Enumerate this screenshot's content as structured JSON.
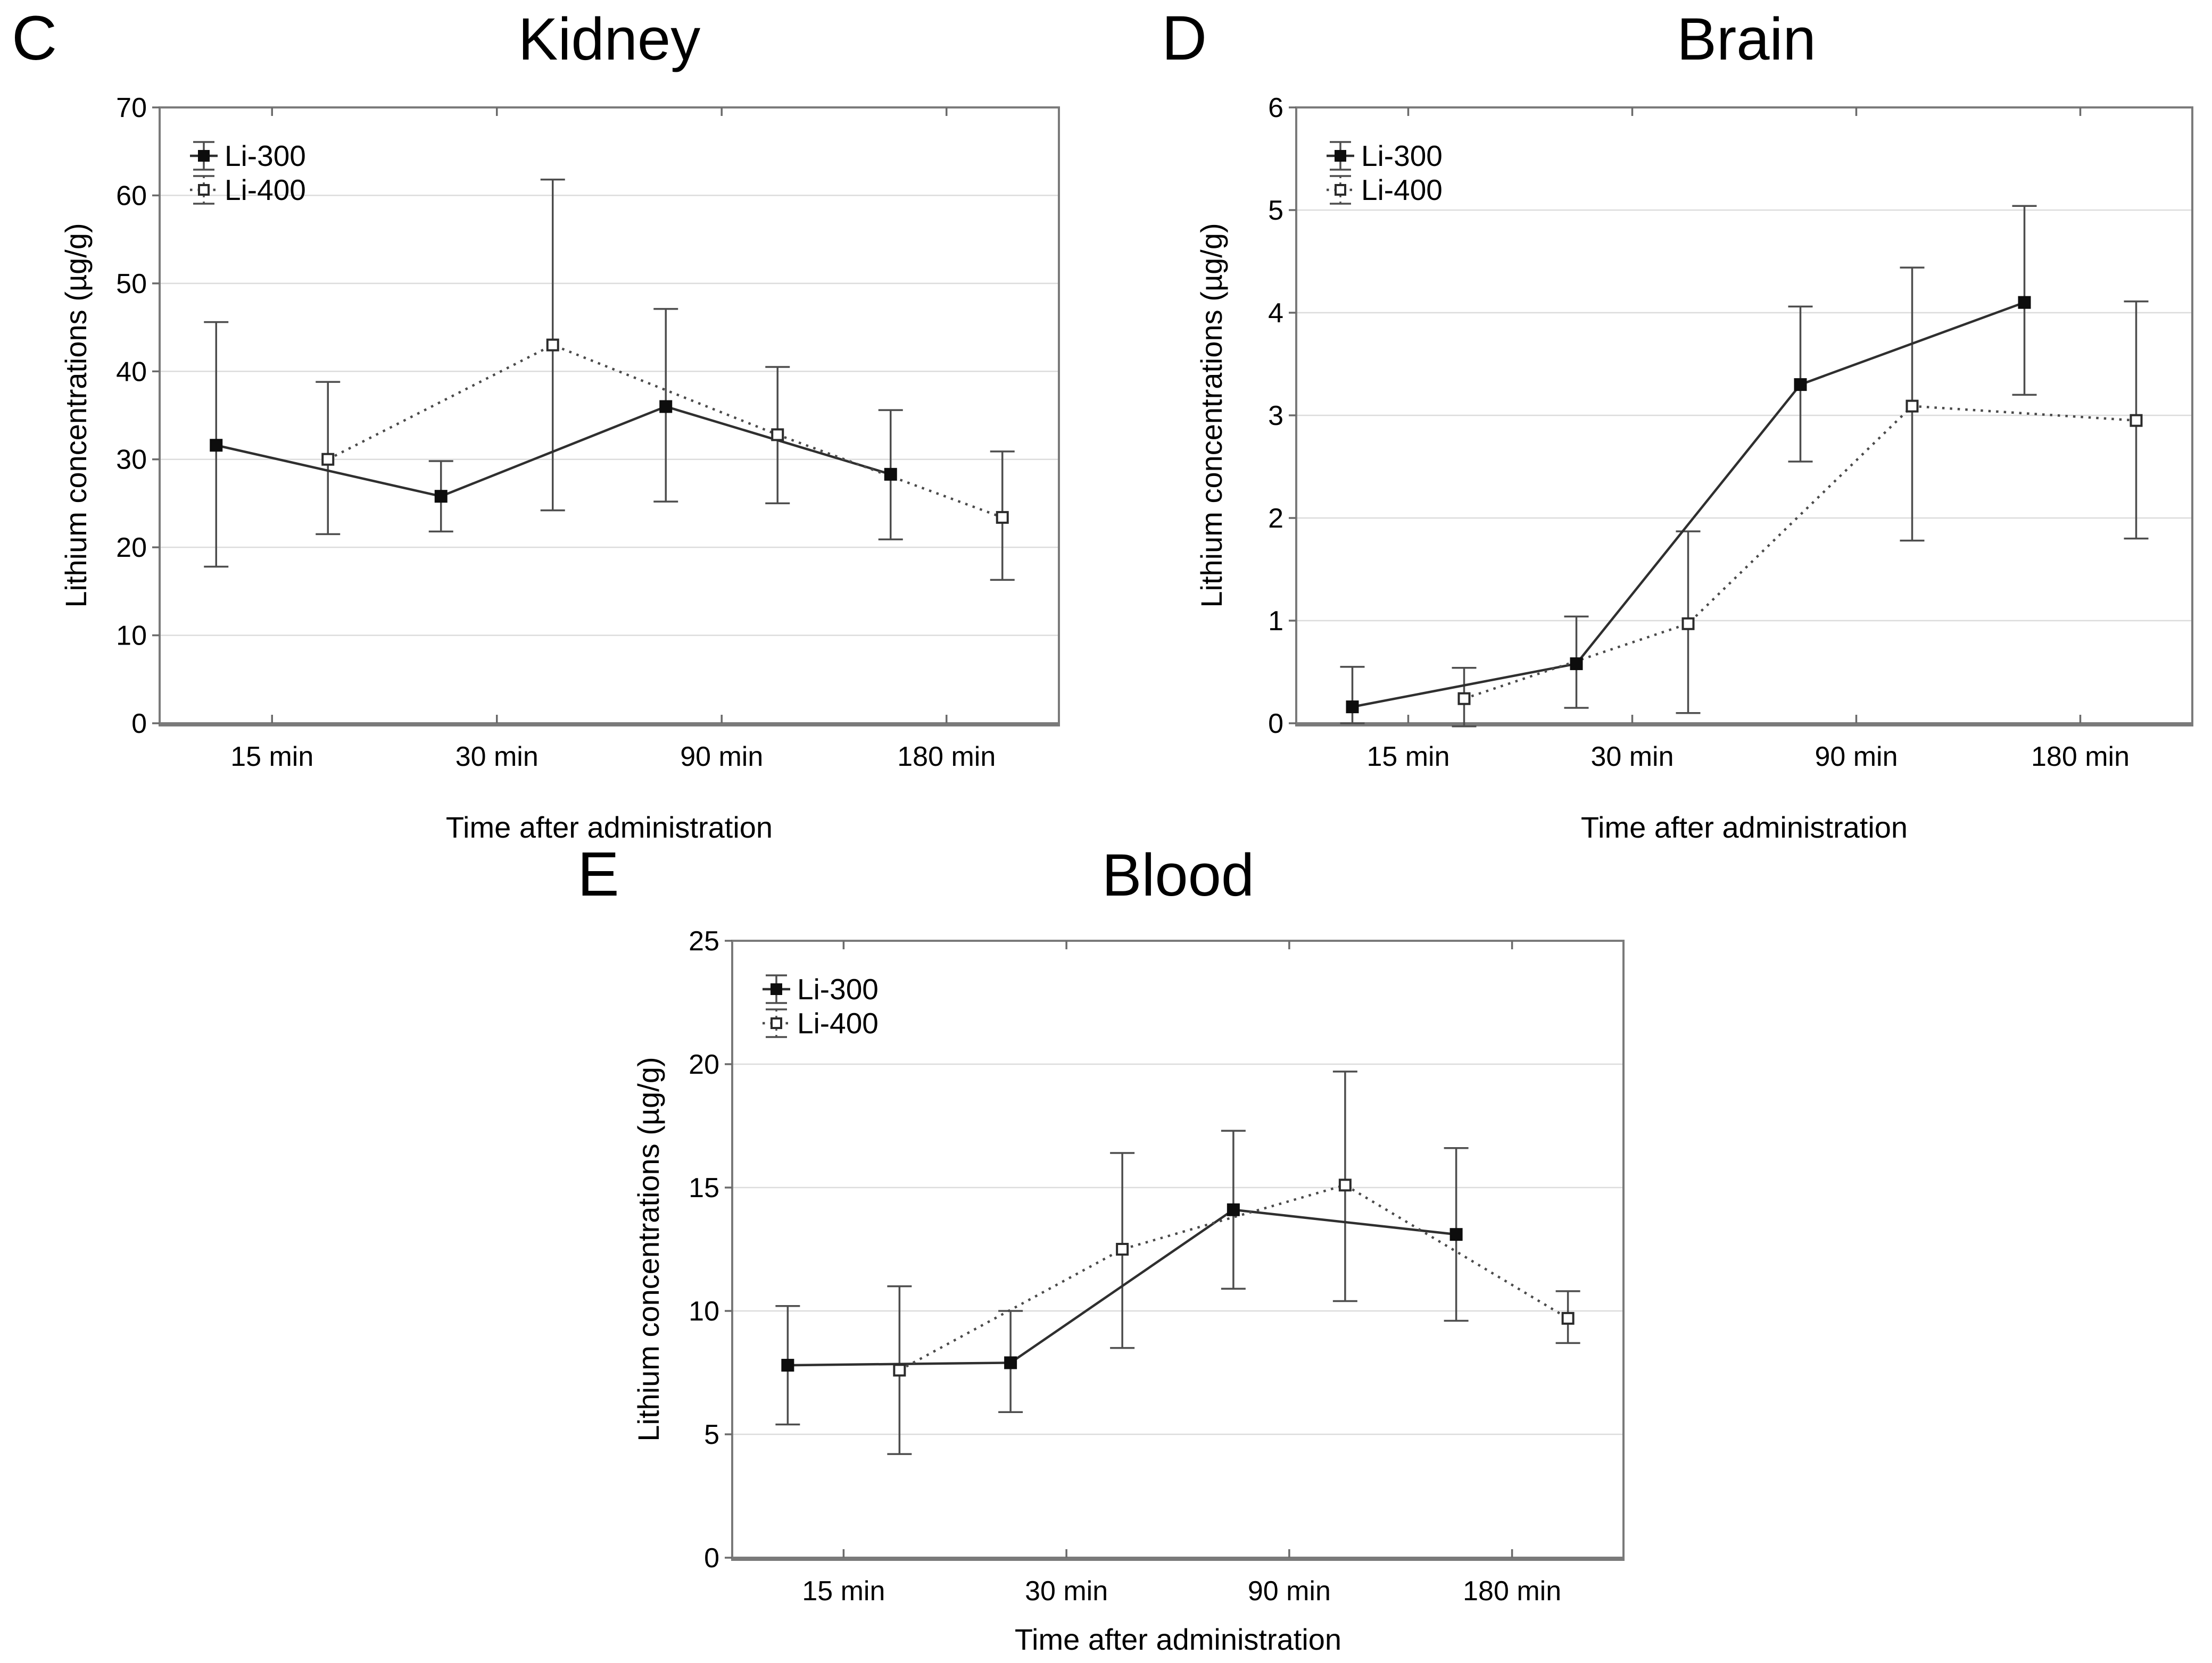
{
  "figure": {
    "background": "#ffffff",
    "description_texts": {
      "xlabel": "Time after administration",
      "ylabel": "Lithium concentrations (µg/g)"
    }
  },
  "colors": {
    "frame": "#7a7a7a",
    "gridline": "#dcdcdc",
    "error_bar": "#4d4d4d",
    "series_li300": "#2f2f2f",
    "series_li400": "#4a4a4a",
    "text": "#000000"
  },
  "chart_data": [
    {
      "panel_letter": "C",
      "title": "Kidney",
      "type": "line",
      "xlabel": "Time after administration",
      "ylabel": "Lithium concentrations (µg/g)",
      "categories": [
        "15 min",
        "30 min",
        "90 min",
        "180 min"
      ],
      "ylim": [
        0,
        70
      ],
      "yticks": [
        0,
        10,
        20,
        30,
        40,
        50,
        60,
        70
      ],
      "grid": "horizontal",
      "legend_position": "top-left",
      "series": [
        {
          "name": "Li-300",
          "marker": "filled-square",
          "line": "solid",
          "values": [
            31.6,
            25.8,
            36.0,
            28.3
          ],
          "err_low": [
            17.8,
            21.8,
            25.2,
            20.9
          ],
          "err_high": [
            45.6,
            29.8,
            47.1,
            35.6
          ]
        },
        {
          "name": "Li-400",
          "marker": "open-square",
          "line": "dotted",
          "values": [
            30.0,
            43.0,
            32.8,
            23.4
          ],
          "err_low": [
            21.5,
            24.2,
            25.0,
            16.3
          ],
          "err_high": [
            38.8,
            61.8,
            40.5,
            30.9
          ]
        }
      ]
    },
    {
      "panel_letter": "D",
      "title": "Brain",
      "type": "line",
      "xlabel": "Time after administration",
      "ylabel": "Lithium concentrations (µg/g)",
      "categories": [
        "15 min",
        "30 min",
        "90 min",
        "180 min"
      ],
      "ylim": [
        0,
        6
      ],
      "yticks": [
        0,
        1,
        2,
        3,
        4,
        5,
        6
      ],
      "grid": "horizontal",
      "legend_position": "top-left",
      "series": [
        {
          "name": "Li-300",
          "marker": "filled-square",
          "line": "solid",
          "values": [
            0.16,
            0.58,
            3.3,
            4.1
          ],
          "err_low": [
            0.0,
            0.15,
            2.55,
            3.2
          ],
          "err_high": [
            0.55,
            1.04,
            4.06,
            5.04
          ]
        },
        {
          "name": "Li-400",
          "marker": "open-square",
          "line": "dotted",
          "values": [
            0.24,
            0.97,
            3.09,
            2.95
          ],
          "err_low": [
            -0.03,
            0.1,
            1.78,
            1.8
          ],
          "err_high": [
            0.54,
            1.87,
            4.44,
            4.11
          ]
        }
      ]
    },
    {
      "panel_letter": "E",
      "title": "Blood",
      "type": "line",
      "xlabel": "Time after administration",
      "ylabel": "Lithium concentrations (µg/g)",
      "categories": [
        "15 min",
        "30 min",
        "90 min",
        "180 min"
      ],
      "ylim": [
        0,
        25
      ],
      "yticks": [
        0,
        5,
        10,
        15,
        20,
        25
      ],
      "grid": "horizontal",
      "legend_position": "top-left",
      "series": [
        {
          "name": "Li-300",
          "marker": "filled-square",
          "line": "solid",
          "values": [
            7.8,
            7.9,
            14.1,
            13.1
          ],
          "err_low": [
            5.4,
            5.9,
            10.9,
            9.6
          ],
          "err_high": [
            10.2,
            10.0,
            17.3,
            16.6
          ]
        },
        {
          "name": "Li-400",
          "marker": "open-square",
          "line": "dotted",
          "values": [
            7.6,
            12.5,
            15.1,
            9.7
          ],
          "err_low": [
            4.2,
            8.5,
            10.4,
            8.7
          ],
          "err_high": [
            11.0,
            16.4,
            19.7,
            10.8
          ]
        }
      ]
    }
  ]
}
